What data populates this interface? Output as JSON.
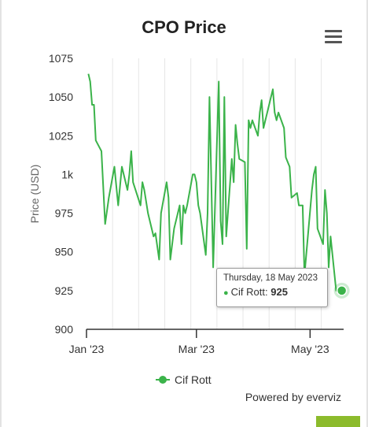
{
  "chart_data": {
    "type": "line",
    "title": "CPO Price",
    "xlabel": "",
    "ylabel": "Price (USD)",
    "ylim": [
      900,
      1075
    ],
    "yticks": [
      900,
      925,
      950,
      975,
      1000,
      1025,
      1050,
      1075
    ],
    "ytick_labels": [
      "900",
      "925",
      "950",
      "975",
      "1k",
      "1025",
      "1050",
      "1075"
    ],
    "xticks": [
      {
        "date": "2023-01-01",
        "label": "Jan '23"
      },
      {
        "date": "2023-03-01",
        "label": "Mar '23"
      },
      {
        "date": "2023-05-01",
        "label": "May '23"
      }
    ],
    "xlim": [
      "2023-01-01",
      "2023-05-19"
    ],
    "grid": "vertical",
    "legend": "bottom",
    "series": [
      {
        "name": "Cif Rott",
        "color": "#3bb34a",
        "x": [
          "2023-01-02",
          "2023-01-03",
          "2023-01-04",
          "2023-01-05",
          "2023-01-06",
          "2023-01-09",
          "2023-01-11",
          "2023-01-13",
          "2023-01-16",
          "2023-01-18",
          "2023-01-20",
          "2023-01-23",
          "2023-01-24",
          "2023-01-25",
          "2023-01-26",
          "2023-01-30",
          "2023-01-31",
          "2023-02-01",
          "2023-02-03",
          "2023-02-06",
          "2023-02-07",
          "2023-02-09",
          "2023-02-10",
          "2023-02-13",
          "2023-02-14",
          "2023-02-15",
          "2023-02-16",
          "2023-02-17",
          "2023-02-20",
          "2023-02-21",
          "2023-02-22",
          "2023-02-23",
          "2023-02-24",
          "2023-02-27",
          "2023-02-28",
          "2023-03-01",
          "2023-03-02",
          "2023-03-03",
          "2023-03-06",
          "2023-03-07",
          "2023-03-08",
          "2023-03-10",
          "2023-03-13",
          "2023-03-14",
          "2023-03-15",
          "2023-03-16",
          "2023-03-17",
          "2023-03-20",
          "2023-03-21",
          "2023-03-22",
          "2023-03-23",
          "2023-03-24",
          "2023-03-27",
          "2023-03-28",
          "2023-03-29",
          "2023-03-30",
          "2023-03-31",
          "2023-04-03",
          "2023-04-04",
          "2023-04-05",
          "2023-04-06",
          "2023-04-11",
          "2023-04-12",
          "2023-04-13",
          "2023-04-14",
          "2023-04-17",
          "2023-04-18",
          "2023-04-19",
          "2023-04-20",
          "2023-04-21",
          "2023-04-24",
          "2023-04-25",
          "2023-04-26",
          "2023-04-27",
          "2023-04-28",
          "2023-05-02",
          "2023-05-03",
          "2023-05-04",
          "2023-05-05",
          "2023-05-08",
          "2023-05-09",
          "2023-05-10",
          "2023-05-11",
          "2023-05-12",
          "2023-05-15",
          "2023-05-16",
          "2023-05-17",
          "2023-05-18"
        ],
        "y": [
          1065,
          1060,
          1045,
          1045,
          1022,
          1015,
          968,
          985,
          1005,
          980,
          1005,
          990,
          1000,
          1015,
          995,
          980,
          995,
          990,
          975,
          960,
          962,
          945,
          975,
          995,
          985,
          945,
          955,
          965,
          980,
          955,
          980,
          975,
          980,
          1000,
          1000,
          995,
          980,
          975,
          948,
          975,
          1050,
          940,
          1060,
          970,
          955,
          1050,
          960,
          1010,
          995,
          1032,
          1020,
          1010,
          1008,
          952,
          1035,
          1030,
          1035,
          1025,
          1040,
          1048,
          1030,
          1055,
          1040,
          1035,
          1040,
          1030,
          1011,
          1008,
          1005,
          985,
          988,
          980,
          980,
          980,
          935,
          990,
          1000,
          1005,
          965,
          955,
          990,
          975,
          940,
          960,
          925,
          925,
          925,
          925
        ]
      }
    ]
  },
  "tooltip": {
    "date": "Thursday, 18 May 2023",
    "series": "Cif Rott",
    "value": "925"
  },
  "menu_icon": "hamburger-menu-icon",
  "credit": "Powered by everviz"
}
